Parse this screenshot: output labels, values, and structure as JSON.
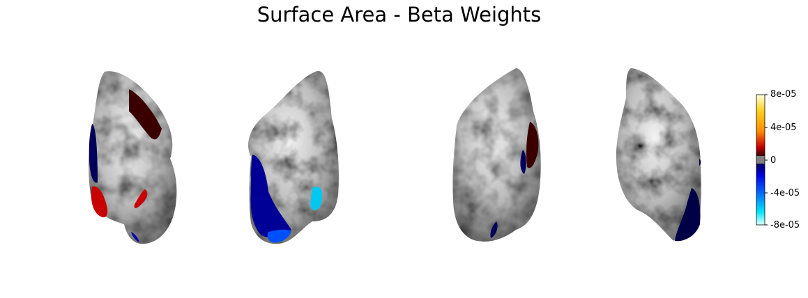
{
  "title": "Surface Area - Beta Weights",
  "colorbar": {
    "ticks": [
      "8e-05",
      "4e-05",
      "0",
      "-4e-05",
      "-8e-05"
    ],
    "max": 8e-05,
    "min": -8e-05,
    "colors": {
      "top": "#ffffe0",
      "upper": "#ffd21e",
      "mid_upper": "#ff8c00",
      "red": "#c80000",
      "dark_red": "#3a0000",
      "zero": "#808080",
      "dark_blue": "#00005a",
      "blue": "#0000e6",
      "mid_lower": "#0066ff",
      "cyan": "#00e6ff",
      "bottom": "#e0ffff"
    }
  },
  "views": [
    {
      "name": "lateral-left",
      "surface": "#a9a9a9"
    },
    {
      "name": "medial-left",
      "surface": "#a9a9a9"
    },
    {
      "name": "lateral-right",
      "surface": "#a9a9a9"
    },
    {
      "name": "medial-right",
      "surface": "#a9a9a9"
    }
  ]
}
